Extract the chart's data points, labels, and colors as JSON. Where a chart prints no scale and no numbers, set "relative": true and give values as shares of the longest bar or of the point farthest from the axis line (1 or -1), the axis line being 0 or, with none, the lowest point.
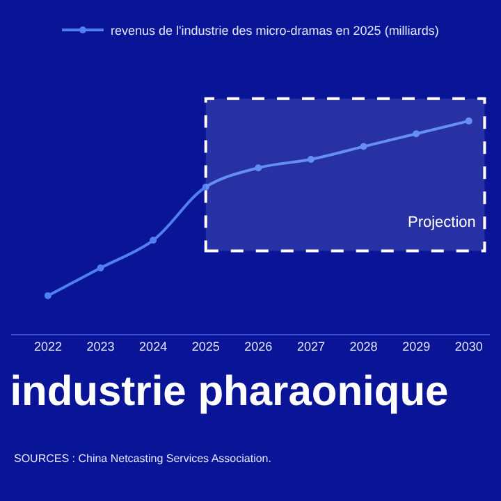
{
  "chart_data": {
    "type": "line",
    "title": "industrie pharaonique",
    "relative": true,
    "categories": [
      "2022",
      "2023",
      "2024",
      "2025",
      "2026",
      "2027",
      "2028",
      "2029",
      "2030"
    ],
    "series": [
      {
        "name": "revenus de l'industrie des micro-dramas en 2025 (milliards)",
        "color": "#4f7ff0",
        "values": [
          0.18,
          0.31,
          0.44,
          0.69,
          0.78,
          0.82,
          0.88,
          0.94,
          1.0
        ]
      }
    ],
    "bands": [
      {
        "axis": "x",
        "from": "2025",
        "to": "2030",
        "label": "Projection",
        "color": "#ffffff"
      }
    ],
    "annotations": [
      "SOURCES : China Netcasting Services Association."
    ],
    "legend": "top",
    "marker": "circle",
    "line_style": "solid"
  }
}
